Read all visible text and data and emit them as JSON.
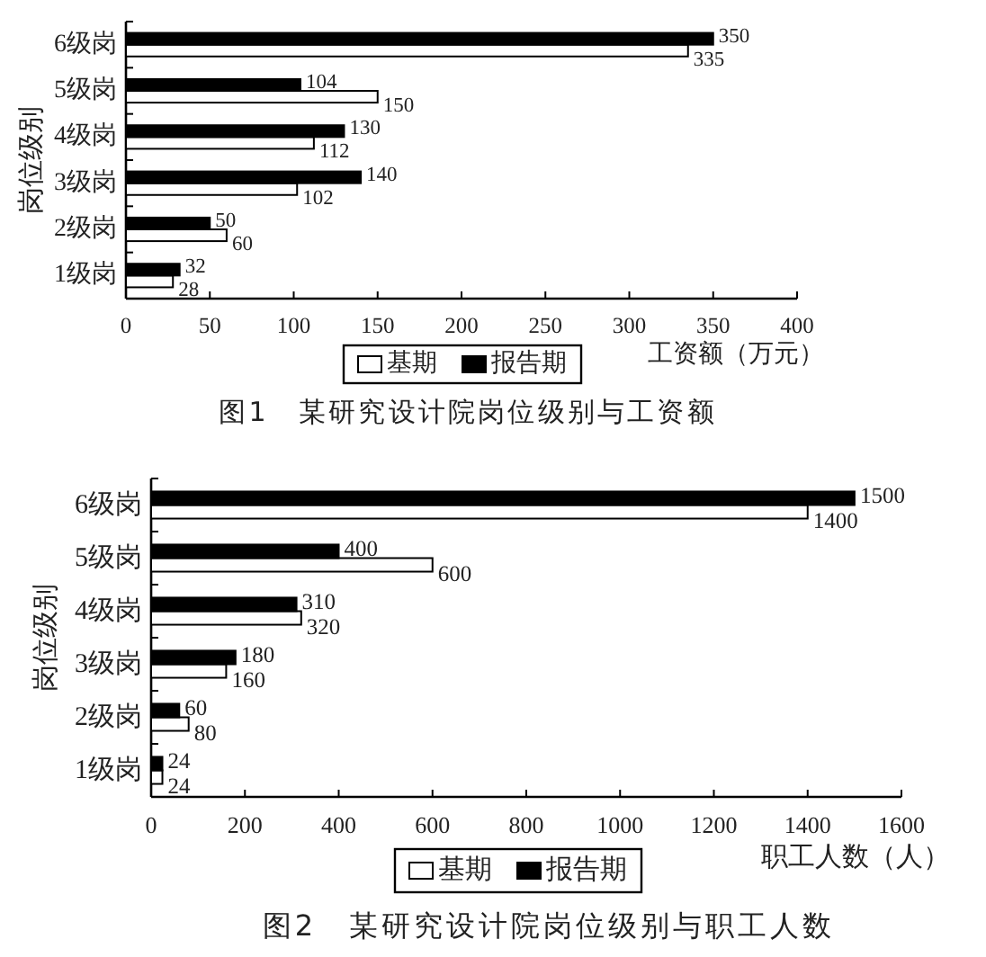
{
  "chart_data": [
    {
      "type": "bar",
      "orientation": "horizontal",
      "title": "图1　某研究设计院岗位级别与工资额",
      "xlabel": "工资额（万元）",
      "ylabel": "岗位级别",
      "categories": [
        "6级岗",
        "5级岗",
        "4级岗",
        "3级岗",
        "2级岗",
        "1级岗"
      ],
      "series": [
        {
          "name": "基期",
          "color": "#ffffff",
          "values": [
            335,
            150,
            112,
            102,
            60,
            28
          ]
        },
        {
          "name": "报告期",
          "color": "#000000",
          "values": [
            350,
            104,
            130,
            140,
            50,
            32
          ]
        }
      ],
      "xlim": [
        0,
        400
      ],
      "xticks": [
        0,
        50,
        100,
        150,
        200,
        250,
        300,
        350,
        400
      ],
      "data_labels": true,
      "legend": "bottom"
    },
    {
      "type": "bar",
      "orientation": "horizontal",
      "title": "图2　某研究设计院岗位级别与职工人数",
      "xlabel": "职工人数（人）",
      "ylabel": "岗位级别",
      "categories": [
        "6级岗",
        "5级岗",
        "4级岗",
        "3级岗",
        "2级岗",
        "1级岗"
      ],
      "series": [
        {
          "name": "基期",
          "color": "#ffffff",
          "values": [
            1400,
            600,
            320,
            160,
            80,
            24
          ]
        },
        {
          "name": "报告期",
          "color": "#000000",
          "values": [
            1500,
            400,
            310,
            180,
            60,
            24
          ]
        }
      ],
      "xlim": [
        0,
        1600
      ],
      "xticks": [
        0,
        200,
        400,
        600,
        800,
        1000,
        1200,
        1400,
        1600
      ],
      "data_labels": true,
      "legend": "bottom"
    }
  ]
}
